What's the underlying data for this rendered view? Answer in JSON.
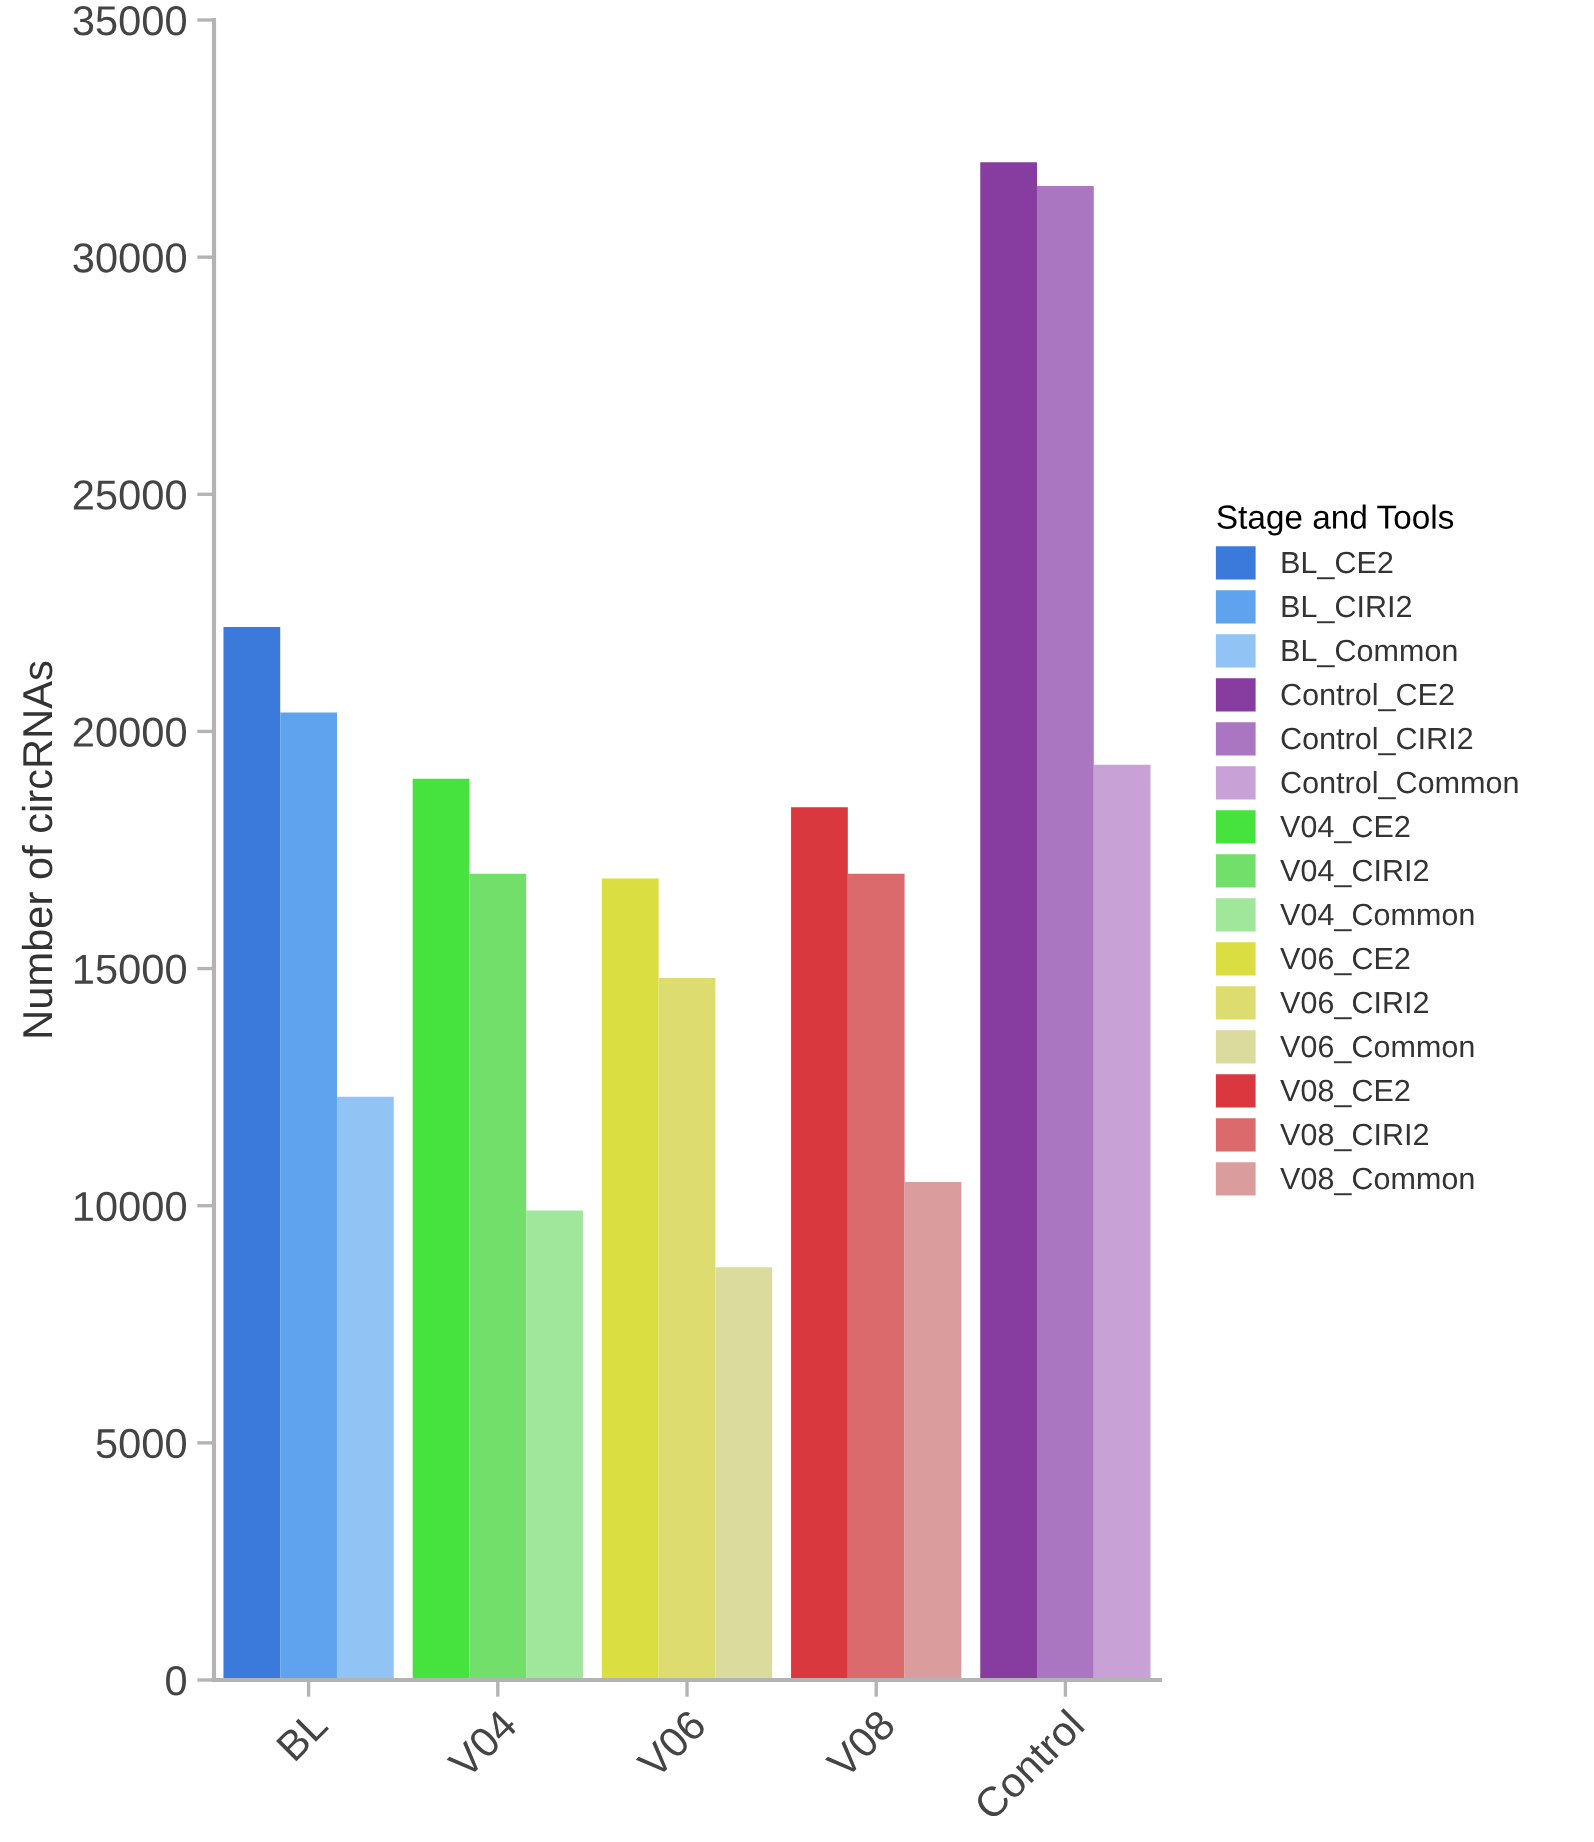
{
  "chart_data": {
    "type": "bar",
    "ylabel": "Number of circRNAs",
    "legend_title": "Stage and Tools",
    "categories": [
      "BL",
      "V04",
      "V06",
      "V08",
      "Control"
    ],
    "series": [
      {
        "name": "BL_CE2",
        "color": "#3b79db",
        "values": [
          22200,
          null,
          null,
          null,
          null
        ]
      },
      {
        "name": "BL_CIRI2",
        "color": "#5fa3ee",
        "values": [
          20400,
          null,
          null,
          null,
          null
        ]
      },
      {
        "name": "BL_Common",
        "color": "#92c3f5",
        "values": [
          12300,
          null,
          null,
          null,
          null
        ]
      },
      {
        "name": "Control_CE2",
        "color": "#873da0",
        "values": [
          null,
          null,
          null,
          null,
          32000
        ]
      },
      {
        "name": "Control_CIRI2",
        "color": "#aa76c2",
        "values": [
          null,
          null,
          null,
          null,
          31500
        ]
      },
      {
        "name": "Control_Common",
        "color": "#c8a2d6",
        "values": [
          null,
          null,
          null,
          null,
          19300
        ]
      },
      {
        "name": "V04_CE2",
        "color": "#46e23e",
        "values": [
          null,
          19000,
          null,
          null,
          null
        ]
      },
      {
        "name": "V04_CIRI2",
        "color": "#72df6b",
        "values": [
          null,
          17000,
          null,
          null,
          null
        ]
      },
      {
        "name": "V04_Common",
        "color": "#a0e79c",
        "values": [
          null,
          9900,
          null,
          null,
          null
        ]
      },
      {
        "name": "V06_CE2",
        "color": "#dade40",
        "values": [
          null,
          null,
          16900,
          null,
          null
        ]
      },
      {
        "name": "V06_CIRI2",
        "color": "#dcdd6e",
        "values": [
          null,
          null,
          14800,
          null,
          null
        ]
      },
      {
        "name": "V06_Common",
        "color": "#dbdb9e",
        "values": [
          null,
          null,
          8700,
          null,
          null
        ]
      },
      {
        "name": "V08_CE2",
        "color": "#d9393e",
        "values": [
          null,
          null,
          null,
          18400,
          null
        ]
      },
      {
        "name": "V08_CIRI2",
        "color": "#da6a6c",
        "values": [
          null,
          null,
          null,
          17000,
          null
        ]
      },
      {
        "name": "V08_Common",
        "color": "#db9c9d",
        "values": [
          null,
          null,
          null,
          10500,
          null
        ]
      }
    ],
    "ylim": [
      0,
      35000
    ],
    "yticks": [
      0,
      5000,
      10000,
      15000,
      20000,
      25000,
      30000,
      35000
    ],
    "grid": false,
    "legend": "right"
  }
}
